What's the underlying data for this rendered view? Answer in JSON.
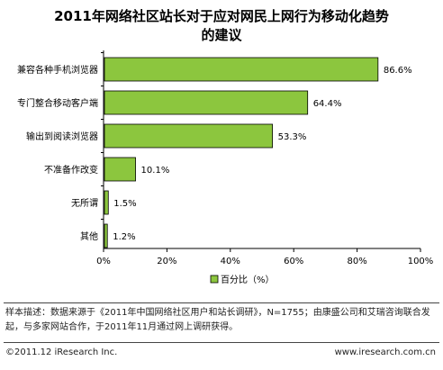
{
  "chart_data": {
    "type": "bar",
    "orientation": "horizontal",
    "title_lines": [
      "2011年网络社区站长对于应对网民上网行为移动化趋势",
      "的建议"
    ],
    "categories": [
      "兼容各种手机浏览器",
      "专门整合移动客户端",
      "输出到阅读浏览器",
      "不准备作改变",
      "无所谓",
      "其他"
    ],
    "values": [
      86.6,
      64.4,
      53.3,
      10.1,
      1.5,
      1.2
    ],
    "value_labels": [
      "86.6%",
      "64.4%",
      "53.3%",
      "10.1%",
      "1.5%",
      "1.2%"
    ],
    "x_ticks": [
      "0%",
      "20%",
      "40%",
      "60%",
      "80%",
      "100%"
    ],
    "xlim": [
      0,
      100
    ],
    "legend": "百分比（%）",
    "legend_position": "bottom-center",
    "bar_color": "#8cc63e",
    "grid": false
  },
  "note": "样本描述：数据来源于《2011年中国网络社区用户和站长调研》，N=1755；由康盛公司和艾瑞咨询联合发起，与多家网站合作，于2011年11月通过网上调研获得。",
  "footer": {
    "left": "©2011.12 iResearch Inc.",
    "right": "www.iresearch.com.cn"
  }
}
